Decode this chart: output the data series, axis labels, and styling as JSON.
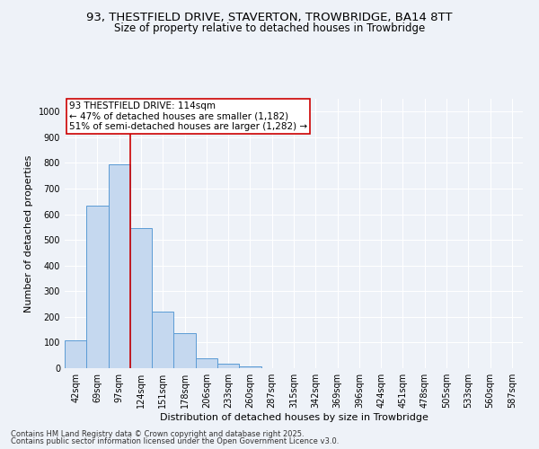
{
  "title_line1": "93, THESTFIELD DRIVE, STAVERTON, TROWBRIDGE, BA14 8TT",
  "title_line2": "Size of property relative to detached houses in Trowbridge",
  "xlabel": "Distribution of detached houses by size in Trowbridge",
  "ylabel": "Number of detached properties",
  "bar_color": "#c5d8ef",
  "bar_edge_color": "#5b9bd5",
  "background_color": "#eef2f8",
  "grid_color": "#ffffff",
  "categories": [
    "42sqm",
    "69sqm",
    "97sqm",
    "124sqm",
    "151sqm",
    "178sqm",
    "206sqm",
    "233sqm",
    "260sqm",
    "287sqm",
    "315sqm",
    "342sqm",
    "369sqm",
    "396sqm",
    "424sqm",
    "451sqm",
    "478sqm",
    "505sqm",
    "533sqm",
    "560sqm",
    "587sqm"
  ],
  "values": [
    107,
    632,
    795,
    547,
    220,
    135,
    40,
    17,
    7,
    0,
    0,
    0,
    0,
    0,
    0,
    0,
    0,
    0,
    0,
    0,
    0
  ],
  "ylim": [
    0,
    1050
  ],
  "yticks": [
    0,
    100,
    200,
    300,
    400,
    500,
    600,
    700,
    800,
    900,
    1000
  ],
  "property_line_x": 2.5,
  "annotation_line1": "93 THESTFIELD DRIVE: 114sqm",
  "annotation_line2": "← 47% of detached houses are smaller (1,182)",
  "annotation_line3": "51% of semi-detached houses are larger (1,282) →",
  "annotation_box_color": "#ffffff",
  "annotation_edge_color": "#cc0000",
  "vline_color": "#cc0000",
  "footnote1": "Contains HM Land Registry data © Crown copyright and database right 2025.",
  "footnote2": "Contains public sector information licensed under the Open Government Licence v3.0.",
  "title_fontsize": 9.5,
  "subtitle_fontsize": 8.5,
  "tick_fontsize": 7,
  "label_fontsize": 8,
  "annotation_fontsize": 7.5,
  "footnote_fontsize": 6
}
